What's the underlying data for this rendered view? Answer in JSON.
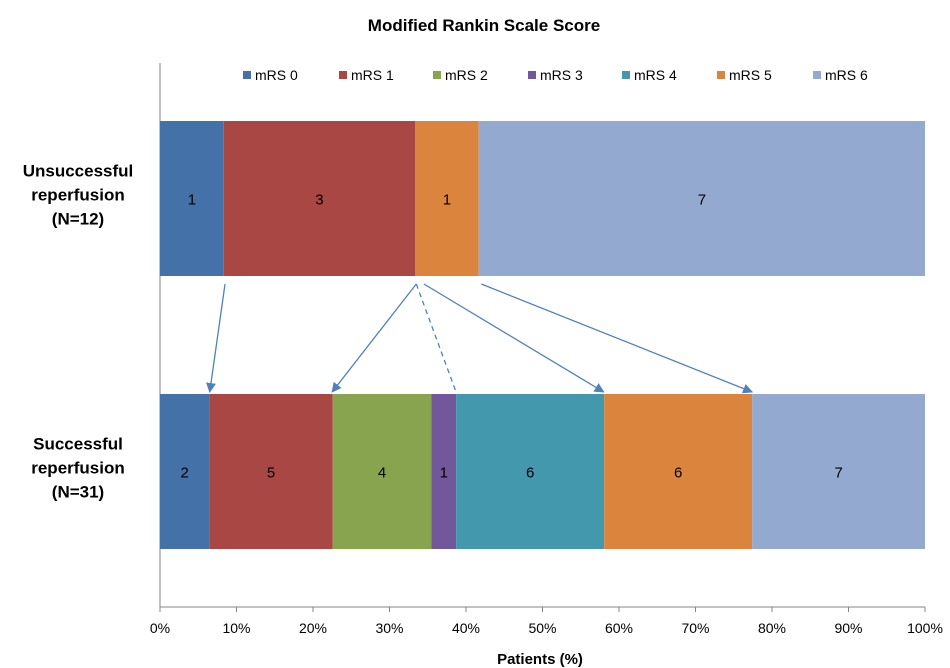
{
  "chart_data": {
    "type": "bar",
    "orientation": "horizontal",
    "stacked": "percent",
    "title": "Modified Rankin Scale Score",
    "xlabel": "Patients (%)",
    "ylabel": "",
    "xlim": [
      0,
      100
    ],
    "x_ticks": [
      "0%",
      "10%",
      "20%",
      "30%",
      "40%",
      "50%",
      "60%",
      "70%",
      "80%",
      "90%",
      "100%"
    ],
    "grid": false,
    "legend_position": "top",
    "categories": [
      {
        "lines": [
          "Unsuccessful",
          "reperfusion",
          "(N=12)"
        ],
        "n": 12
      },
      {
        "lines": [
          "Successful",
          "reperfusion",
          "(N=31)"
        ],
        "n": 31
      }
    ],
    "series": [
      {
        "name": "mRS 0",
        "color": "#4472A8",
        "values": [
          1,
          2
        ]
      },
      {
        "name": "mRS 1",
        "color": "#A84744",
        "values": [
          3,
          5
        ]
      },
      {
        "name": "mRS 2",
        "color": "#88A44E",
        "values": [
          0,
          4
        ]
      },
      {
        "name": "mRS 3",
        "color": "#72589A",
        "values": [
          0,
          1
        ]
      },
      {
        "name": "mRS 4",
        "color": "#4398AE",
        "values": [
          0,
          6
        ]
      },
      {
        "name": "mRS 5",
        "color": "#DB843D",
        "values": [
          1,
          6
        ]
      },
      {
        "name": "mRS 6",
        "color": "#93A9D0",
        "values": [
          7,
          7
        ]
      }
    ],
    "annotations": {
      "arrow_color": "#4F81BD",
      "arrows": [
        {
          "from_pct": 8.5,
          "to_pct": 6.5,
          "style": "solid"
        },
        {
          "from_pct": 33.5,
          "to_pct": 22.5,
          "style": "solid"
        },
        {
          "from_pct": 33.5,
          "to_pct": 38.7,
          "style": "dashed"
        },
        {
          "from_pct": 34.5,
          "to_pct": 58.0,
          "style": "solid"
        },
        {
          "from_pct": 42.0,
          "to_pct": 77.4,
          "style": "solid"
        }
      ]
    }
  }
}
